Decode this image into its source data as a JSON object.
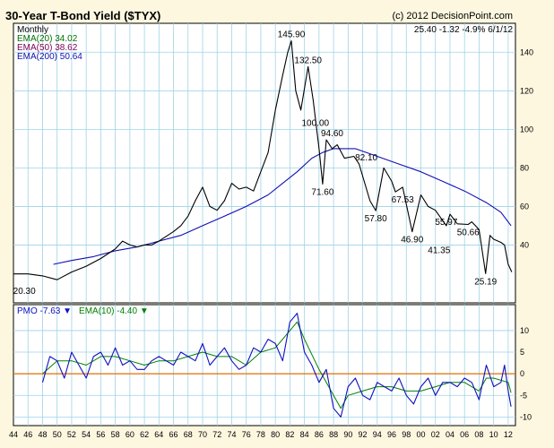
{
  "title": "30-Year T-Bond Yield ($TYX)",
  "credit": "(c) 2012 DecisionPoint.com",
  "chart_data": [
    {
      "type": "line",
      "panel": "price",
      "frequency_label": "Monthly",
      "quote": "25.40  -1.32  -4.9%  6/1/12",
      "ylim": [
        10,
        155
      ],
      "yticks": [
        40,
        60,
        80,
        100,
        120,
        140
      ],
      "grid": true,
      "legend_position": "top-left",
      "x_range": [
        1944,
        2013
      ],
      "xtick_labels": [
        "44",
        "46",
        "48",
        "50",
        "52",
        "54",
        "56",
        "58",
        "60",
        "62",
        "64",
        "66",
        "68",
        "70",
        "72",
        "74",
        "76",
        "78",
        "80",
        "82",
        "84",
        "86",
        "88",
        "90",
        "92",
        "94",
        "96",
        "98",
        "00",
        "02",
        "04",
        "06",
        "08",
        "10",
        "12"
      ],
      "series": [
        {
          "name": "$TYX",
          "color": "#000000",
          "x": [
            1944,
            1946,
            1948,
            1950,
            1952,
            1954,
            1956,
            1958,
            1959,
            1960,
            1961,
            1962,
            1963,
            1964,
            1966,
            1967,
            1968,
            1969,
            1970,
            1971,
            1972,
            1973,
            1974,
            1975,
            1976,
            1977,
            1978,
            1979,
            1980,
            1981,
            1981.7,
            1982.2,
            1982.8,
            1983.5,
            1984.5,
            1985.2,
            1986,
            1986.5,
            1987,
            1987.8,
            1988.5,
            1989.5,
            1990.8,
            1991.5,
            1993,
            1993.8,
            1994.9,
            1996,
            1996.5,
            1997.5,
            1998.8,
            2000,
            2001,
            2002,
            2003.5,
            2004,
            2005,
            2006.5,
            2007,
            2008,
            2008.9,
            2009.5,
            2010,
            2011,
            2011.5,
            2012,
            2012.5
          ],
          "y": [
            25,
            25,
            24,
            22,
            26,
            29,
            33,
            38,
            42,
            40,
            39,
            40,
            40,
            42,
            47,
            50,
            55,
            63,
            70,
            60,
            58,
            63,
            72,
            69,
            70,
            68,
            78,
            88,
            110,
            128,
            140,
            145.9,
            120,
            110,
            132.5,
            115,
            90,
            71.6,
            94.6,
            90,
            92,
            85,
            86,
            82.1,
            63,
            57.8,
            80,
            73,
            67.53,
            70,
            46.9,
            66,
            60,
            58,
            50,
            55.97,
            51,
            50.66,
            52,
            48,
            25.19,
            45,
            43,
            41.35,
            40,
            30,
            26
          ]
        },
        {
          "name": "EMA(20)",
          "value": "34.02",
          "color": "#007000"
        },
        {
          "name": "EMA(50)",
          "value": "38.62",
          "color": "#7a0055"
        },
        {
          "name": "EMA(200)",
          "value": "50.64",
          "color": "#1010b0",
          "x": [
            1949.5,
            1952,
            1955,
            1958,
            1961,
            1964,
            1967,
            1970,
            1973,
            1976,
            1979,
            1981,
            1983,
            1985,
            1986.5,
            1988,
            1991,
            1994,
            1997,
            2000,
            2003,
            2006,
            2009,
            2011,
            2012.4
          ],
          "y": [
            30,
            32,
            34,
            37,
            39,
            42,
            45,
            50,
            55,
            60,
            66,
            72,
            78,
            85,
            88,
            90,
            90,
            86,
            82,
            78,
            73,
            68,
            62,
            57,
            50
          ]
        }
      ],
      "annotations": [
        {
          "label": "145.90",
          "x": 1982.2,
          "y": 145.9
        },
        {
          "label": "132.50",
          "x": 1984.5,
          "y": 132.5
        },
        {
          "label": "100.00",
          "x": 1985.5,
          "y": 100
        },
        {
          "label": "94.60",
          "x": 1987.8,
          "y": 94.6
        },
        {
          "label": "82.10",
          "x": 1992.5,
          "y": 82.1
        },
        {
          "label": "71.60",
          "x": 1986.5,
          "y": 71.6
        },
        {
          "label": "67.53",
          "x": 1997.5,
          "y": 67.53
        },
        {
          "label": "57.80",
          "x": 1993.8,
          "y": 57.8
        },
        {
          "label": "55.97",
          "x": 2003.5,
          "y": 55.97
        },
        {
          "label": "50.66",
          "x": 2006.5,
          "y": 50.66
        },
        {
          "label": "46.90",
          "x": 1998.8,
          "y": 46.9
        },
        {
          "label": "41.35",
          "x": 2002.5,
          "y": 41.35
        },
        {
          "label": "25.19",
          "x": 2008.9,
          "y": 25.19
        },
        {
          "label": "20.30",
          "x": 1945.5,
          "y": 20.3
        }
      ]
    },
    {
      "type": "line",
      "panel": "indicator",
      "ylim": [
        -12,
        16
      ],
      "yticks": [
        10,
        5,
        0,
        -5,
        -10
      ],
      "zero_line_color": "#e07000",
      "grid": true,
      "legend_position": "top-left",
      "x_range": [
        1944,
        2013
      ],
      "legend": [
        {
          "name": "PMO",
          "value": "-7.63",
          "arrow": "▼",
          "color": "#1010c0"
        },
        {
          "name": "EMA(10)",
          "value": "-4.40",
          "arrow": "▼",
          "color": "#008000"
        }
      ],
      "series": [
        {
          "name": "PMO",
          "color": "#1010c0",
          "x": [
            1948,
            1949,
            1950,
            1951,
            1952,
            1953,
            1954,
            1955,
            1956,
            1957,
            1958,
            1959,
            1960,
            1961,
            1962,
            1963,
            1964,
            1965,
            1966,
            1967,
            1968,
            1969,
            1970,
            1971,
            1972,
            1973,
            1974,
            1975,
            1976,
            1977,
            1978,
            1979,
            1980,
            1981,
            1982,
            1983,
            1984,
            1985,
            1986,
            1987,
            1988,
            1989,
            1990,
            1991,
            1992,
            1993,
            1994,
            1995,
            1996,
            1997,
            1998,
            1999,
            2000,
            2001,
            2002,
            2003,
            2004,
            2005,
            2006,
            2007,
            2008,
            2009,
            2010,
            2011,
            2011.5,
            2012,
            2012.4
          ],
          "y": [
            -2,
            4,
            3,
            -1,
            5,
            2,
            -1,
            4,
            5,
            2,
            6,
            2,
            3,
            1,
            1,
            3,
            4,
            3,
            2,
            5,
            4,
            3,
            7,
            2,
            4,
            6,
            3,
            1,
            2,
            6,
            5,
            8,
            7,
            3,
            12,
            14,
            5,
            2,
            -2,
            1,
            -8,
            -10,
            -3,
            -1,
            -5,
            -6,
            -2,
            -3,
            -4,
            -1,
            -5,
            -7,
            -3,
            -1,
            -5,
            -2,
            -2,
            -3,
            -1,
            -2,
            -6,
            2,
            -3,
            -2,
            2,
            -4,
            -7.63
          ]
        },
        {
          "name": "EMA(10)",
          "color": "#008000",
          "x": [
            1948,
            1950,
            1952,
            1954,
            1956,
            1958,
            1960,
            1962,
            1964,
            1966,
            1968,
            1970,
            1972,
            1974,
            1976,
            1978,
            1980,
            1982,
            1983,
            1984,
            1986,
            1988,
            1989,
            1990,
            1992,
            1994,
            1996,
            1998,
            2000,
            2002,
            2004,
            2006,
            2008,
            2009,
            2010,
            2012,
            2012.4
          ],
          "y": [
            0,
            3,
            3,
            2,
            4,
            4,
            3,
            2,
            3,
            3,
            4,
            5,
            4,
            4,
            2,
            5,
            6,
            10,
            12,
            8,
            1,
            -5,
            -8,
            -5,
            -4,
            -3,
            -3,
            -4,
            -4,
            -3,
            -2,
            -2,
            -4,
            -1,
            -1,
            -2,
            -4.4
          ]
        }
      ]
    }
  ]
}
